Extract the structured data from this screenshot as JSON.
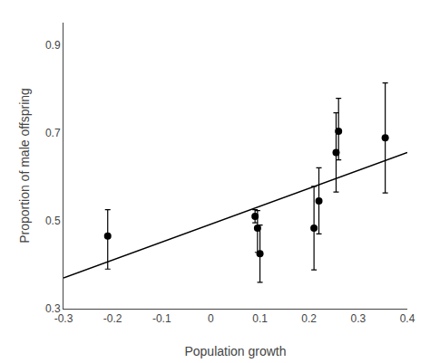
{
  "chart_data": {
    "type": "scatter",
    "xlabel": "Population growth",
    "ylabel": "Proportion of male offspring",
    "xlim": [
      -0.3,
      0.4
    ],
    "ylim": [
      0.3,
      0.95
    ],
    "xticks": [
      -0.3,
      -0.2,
      -0.1,
      0,
      0.1,
      0.2,
      0.3,
      0.4
    ],
    "yticks": [
      0.3,
      0.5,
      0.7,
      0.9
    ],
    "grid": false,
    "series": [
      {
        "type": "scatter",
        "color": "black",
        "marker": "circle",
        "x": [
          -0.21,
          0.09,
          0.095,
          0.1,
          0.21,
          0.22,
          0.255,
          0.26,
          0.355
        ],
        "values": [
          0.465,
          0.51,
          0.483,
          0.425,
          0.483,
          0.545,
          0.655,
          0.703,
          0.688
        ],
        "error_low": [
          0.075,
          0.015,
          0.055,
          0.065,
          0.095,
          0.075,
          0.09,
          0.065,
          0.125
        ],
        "error_high": [
          0.06,
          0.015,
          0.04,
          0.065,
          0.095,
          0.075,
          0.09,
          0.075,
          0.125
        ]
      },
      {
        "type": "line",
        "color": "black",
        "x": [
          -0.3,
          0.4
        ],
        "values": [
          0.37,
          0.655
        ]
      }
    ]
  }
}
